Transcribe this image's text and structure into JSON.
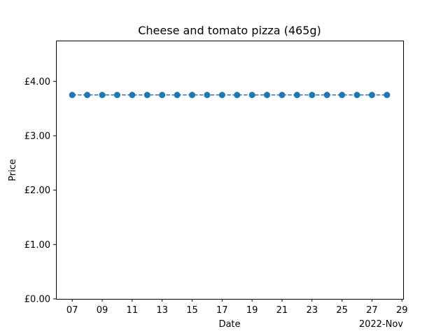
{
  "chart_data": {
    "type": "line",
    "title": "Cheese and tomato pizza (465g)",
    "xlabel": "Date",
    "ylabel": "Price",
    "x_offset_label": "2022-Nov",
    "x_tick_labels": [
      "07",
      "09",
      "11",
      "13",
      "15",
      "17",
      "19",
      "21",
      "23",
      "25",
      "27",
      "29"
    ],
    "x_tick_values": [
      "2022-11-07",
      "2022-11-09",
      "2022-11-11",
      "2022-11-13",
      "2022-11-15",
      "2022-11-17",
      "2022-11-19",
      "2022-11-21",
      "2022-11-23",
      "2022-11-25",
      "2022-11-27",
      "2022-11-29"
    ],
    "y_tick_labels": [
      "£0.00",
      "£1.00",
      "£2.00",
      "£3.00",
      "£4.00"
    ],
    "y_tick_values": [
      0,
      1,
      2,
      3,
      4
    ],
    "ylim": [
      0,
      4.75
    ],
    "xlim": [
      "2022-11-05T22:00",
      "2022-11-29T02:00"
    ],
    "grid": false,
    "series": [
      {
        "color": "#1f77b4",
        "line_style": "dashed",
        "marker": "circle",
        "x": [
          "2022-11-07",
          "2022-11-08",
          "2022-11-09",
          "2022-11-10",
          "2022-11-11",
          "2022-11-12",
          "2022-11-13",
          "2022-11-14",
          "2022-11-15",
          "2022-11-16",
          "2022-11-17",
          "2022-11-18",
          "2022-11-19",
          "2022-11-20",
          "2022-11-21",
          "2022-11-22",
          "2022-11-23",
          "2022-11-24",
          "2022-11-25",
          "2022-11-26",
          "2022-11-27",
          "2022-11-28"
        ],
        "values": [
          3.75,
          3.75,
          3.75,
          3.75,
          3.75,
          3.75,
          3.75,
          3.75,
          3.75,
          3.75,
          3.75,
          3.75,
          3.75,
          3.75,
          3.75,
          3.75,
          3.75,
          3.75,
          3.75,
          3.75,
          3.75,
          3.75
        ]
      }
    ]
  }
}
